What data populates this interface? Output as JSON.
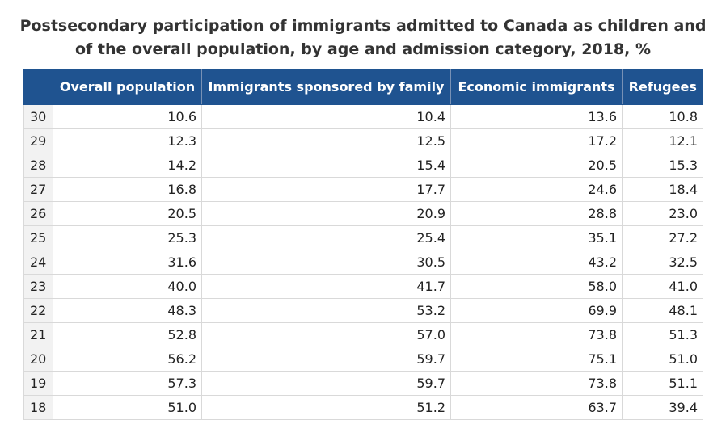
{
  "chart_data": {
    "type": "table",
    "title": "Postsecondary participation of immigrants admitted to Canada as children and of the overall population, by age and admission category, 2018, %",
    "columns": [
      "",
      "Overall population",
      "Immigrants sponsored by family",
      "Economic immigrants",
      "Refugees"
    ],
    "rows": [
      {
        "age": "30",
        "values": [
          "10.6",
          "10.4",
          "13.6",
          "10.8"
        ]
      },
      {
        "age": "29",
        "values": [
          "12.3",
          "12.5",
          "17.2",
          "12.1"
        ]
      },
      {
        "age": "28",
        "values": [
          "14.2",
          "15.4",
          "20.5",
          "15.3"
        ]
      },
      {
        "age": "27",
        "values": [
          "16.8",
          "17.7",
          "24.6",
          "18.4"
        ]
      },
      {
        "age": "26",
        "values": [
          "20.5",
          "20.9",
          "28.8",
          "23.0"
        ]
      },
      {
        "age": "25",
        "values": [
          "25.3",
          "25.4",
          "35.1",
          "27.2"
        ]
      },
      {
        "age": "24",
        "values": [
          "31.6",
          "30.5",
          "43.2",
          "32.5"
        ]
      },
      {
        "age": "23",
        "values": [
          "40.0",
          "41.7",
          "58.0",
          "41.0"
        ]
      },
      {
        "age": "22",
        "values": [
          "48.3",
          "53.2",
          "69.9",
          "48.1"
        ]
      },
      {
        "age": "21",
        "values": [
          "52.8",
          "57.0",
          "73.8",
          "51.3"
        ]
      },
      {
        "age": "20",
        "values": [
          "56.2",
          "59.7",
          "75.1",
          "51.0"
        ]
      },
      {
        "age": "19",
        "values": [
          "57.3",
          "59.7",
          "73.8",
          "51.1"
        ]
      },
      {
        "age": "18",
        "values": [
          "51.0",
          "51.2",
          "63.7",
          "39.4"
        ]
      }
    ]
  },
  "colors": {
    "header_bg": "#1f5390",
    "header_text": "#ffffff",
    "row_label_bg": "#f2f2f2",
    "grid": "#d9d9d9"
  }
}
